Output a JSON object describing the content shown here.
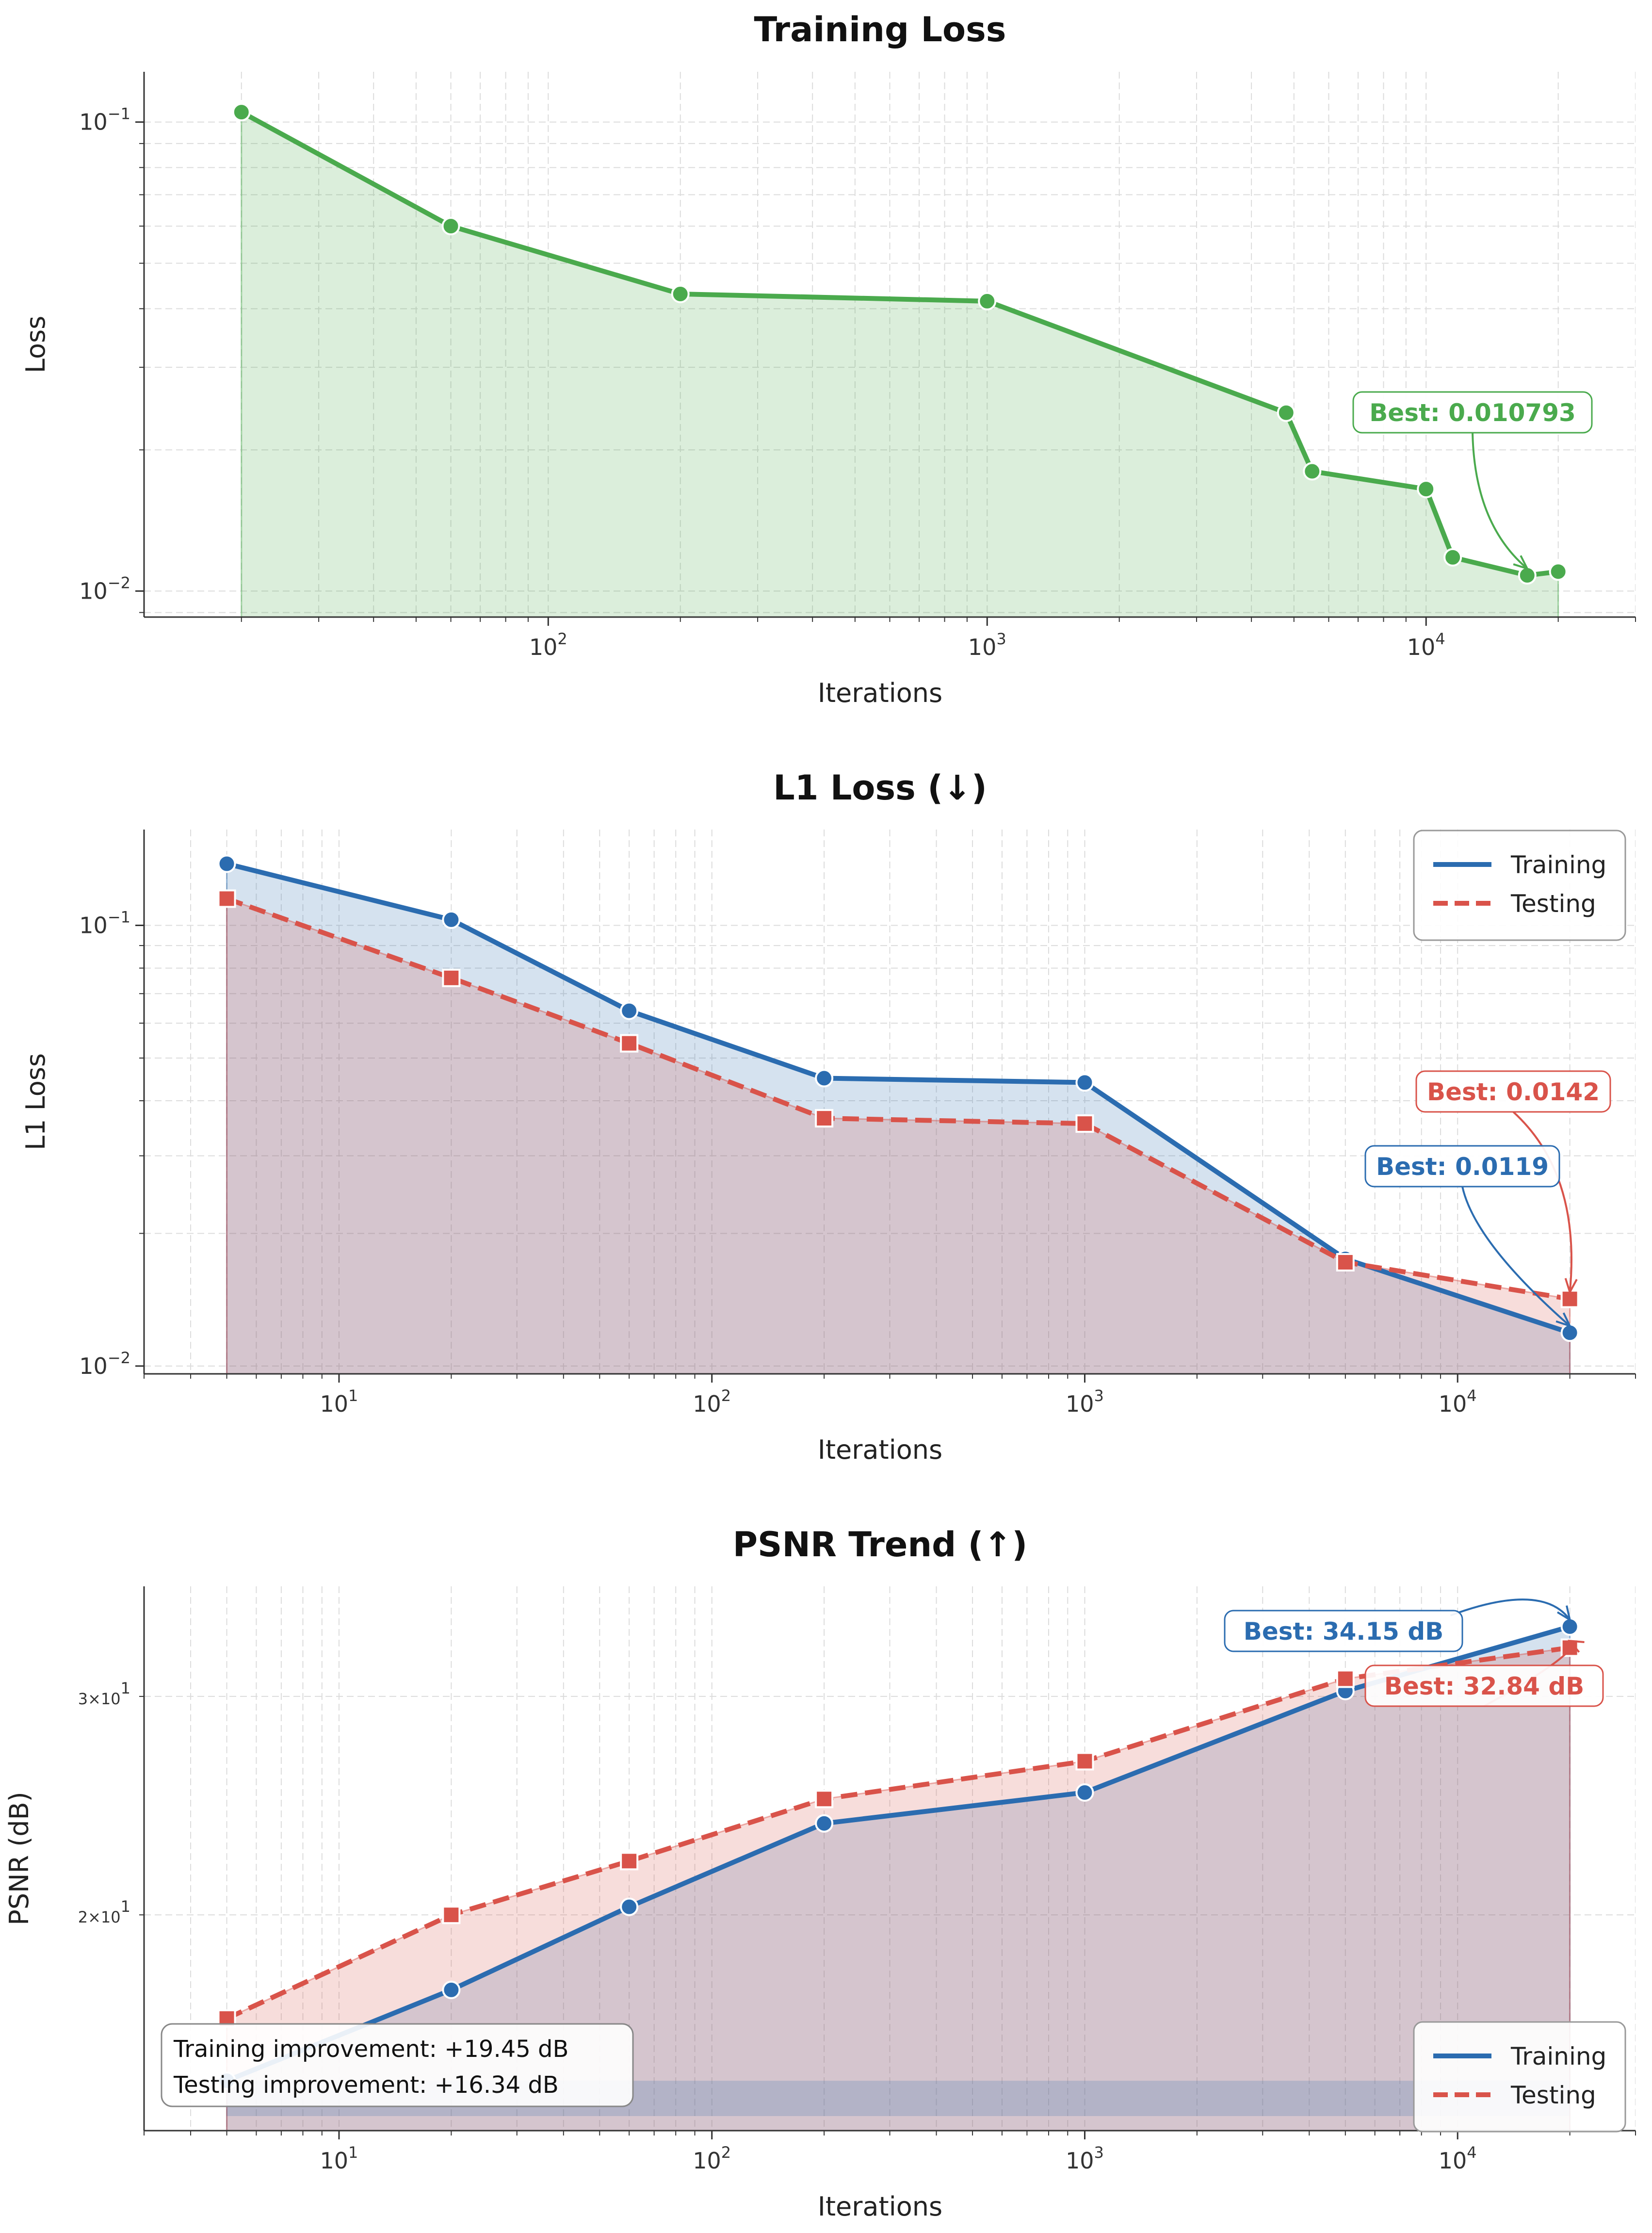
{
  "colors": {
    "training_loss": "#4aaa4d",
    "training": "#2b6cb0",
    "testing": "#d9534a"
  },
  "chart_data": [
    {
      "type": "line",
      "title": "Training Loss",
      "xlabel": "Iterations",
      "ylabel": "Loss",
      "xscale": "log",
      "yscale": "log",
      "xlim": [
        12,
        30000
      ],
      "ylim": [
        0.0088,
        0.128
      ],
      "xticks": [
        100,
        1000,
        10000
      ],
      "yticks": [
        0.01,
        0.1
      ],
      "grid": true,
      "legend": "none",
      "series": [
        {
          "name": "",
          "x": [
            20,
            60,
            200,
            1000,
            4800,
            5500,
            10000,
            11500,
            17000,
            20000
          ],
          "y": [
            0.105,
            0.06,
            0.043,
            0.0415,
            0.024,
            0.018,
            0.0165,
            0.0118,
            0.0108,
            0.011
          ],
          "fill": true,
          "style": "solid",
          "marker": "circle"
        }
      ],
      "annotations": [
        {
          "text": "Best: 0.010793",
          "target": [
            17000,
            0.0108
          ],
          "series": 0
        }
      ]
    },
    {
      "type": "line",
      "title": "L1 Loss (↓)",
      "xlabel": "Iterations",
      "ylabel": "L1 Loss",
      "xscale": "log",
      "yscale": "log",
      "xlim": [
        3,
        30000
      ],
      "ylim": [
        0.0096,
        0.165
      ],
      "xticks": [
        10,
        100,
        1000,
        10000
      ],
      "yticks": [
        0.01,
        0.1
      ],
      "grid": true,
      "legend": "top-right",
      "series": [
        {
          "name": "Training",
          "x": [
            5,
            20,
            60,
            200,
            1000,
            5000,
            20000
          ],
          "y": [
            0.138,
            0.103,
            0.064,
            0.045,
            0.044,
            0.0175,
            0.0119
          ],
          "fill": true,
          "style": "solid",
          "marker": "circle"
        },
        {
          "name": "Testing",
          "x": [
            5,
            20,
            60,
            200,
            1000,
            5000,
            20000
          ],
          "y": [
            0.115,
            0.076,
            0.054,
            0.0365,
            0.0355,
            0.0172,
            0.0142
          ],
          "fill": true,
          "style": "dashed",
          "marker": "square"
        }
      ],
      "annotations": [
        {
          "text": "Best: 0.0142",
          "target": [
            20000,
            0.0142
          ],
          "series": 1
        },
        {
          "text": "Best: 0.0119",
          "target": [
            20000,
            0.0119
          ],
          "series": 0
        }
      ]
    },
    {
      "type": "line",
      "title": "PSNR Trend (↑)",
      "xlabel": "Iterations",
      "ylabel": "PSNR (dB)",
      "xscale": "log",
      "yscale": "log",
      "xlim": [
        3,
        30000
      ],
      "ylim": [
        13.4,
        36.8
      ],
      "xticks": [
        10,
        100,
        1000,
        10000
      ],
      "yticks": [
        20,
        30
      ],
      "grid": true,
      "legend": "bottom-right",
      "series": [
        {
          "name": "Training",
          "x": [
            5,
            20,
            60,
            200,
            1000,
            5000,
            20000
          ],
          "y": [
            14.7,
            17.4,
            20.3,
            23.7,
            25.1,
            30.3,
            34.15
          ],
          "fill": true,
          "style": "solid",
          "marker": "circle"
        },
        {
          "name": "Testing",
          "x": [
            5,
            20,
            60,
            200,
            1000,
            5000,
            20000
          ],
          "y": [
            16.5,
            20.0,
            22.1,
            24.8,
            26.6,
            31.0,
            32.84
          ],
          "fill": true,
          "style": "dashed",
          "marker": "square"
        }
      ],
      "annotations": [
        {
          "text": "Best: 34.15 dB",
          "target": [
            20000,
            34.15
          ],
          "series": 0
        },
        {
          "text": "Best: 32.84 dB",
          "target": [
            20000,
            32.84
          ],
          "series": 1
        }
      ],
      "info_box": [
        "Training improvement: +19.45 dB",
        "Testing improvement: +16.34 dB"
      ]
    }
  ]
}
